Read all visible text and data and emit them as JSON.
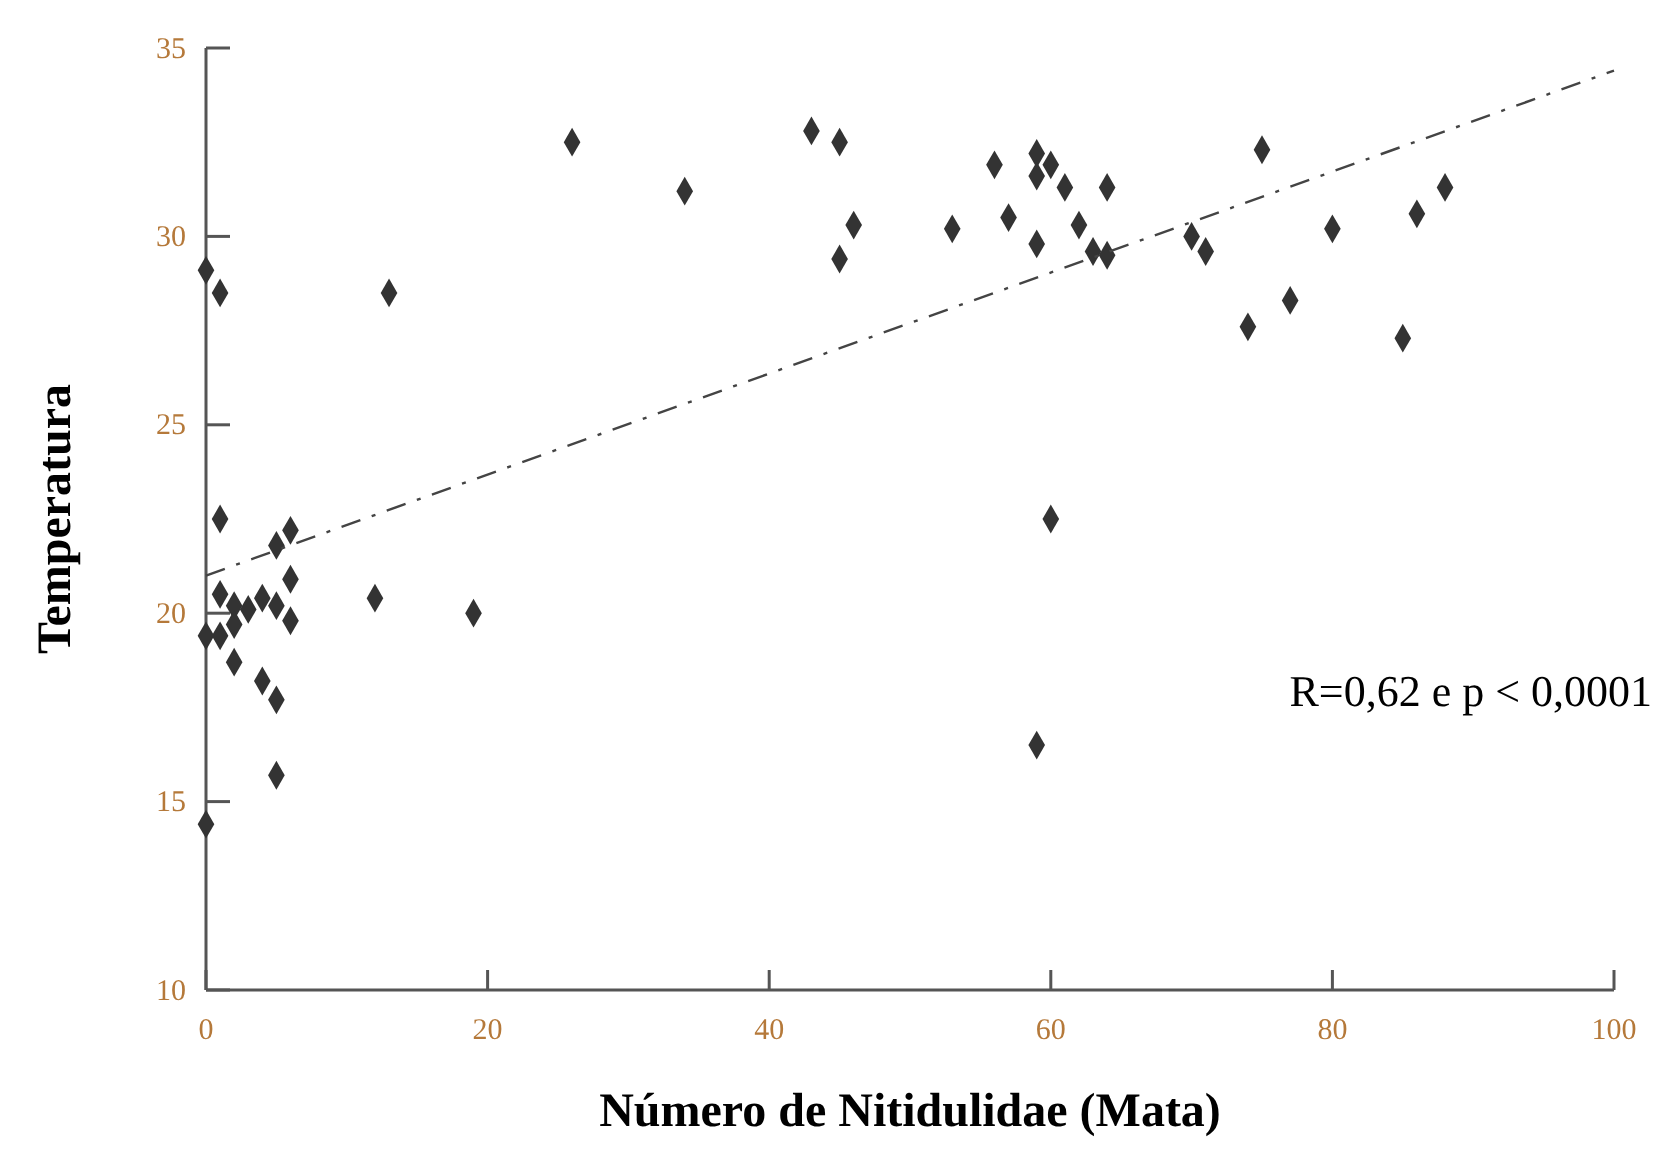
{
  "chart_data": {
    "type": "scatter",
    "xlabel": "Número de Nitidulidae (Mata)",
    "ylabel": "Temperatura",
    "xlim": [
      0,
      100
    ],
    "ylim": [
      10,
      35
    ],
    "xticks": [
      0,
      20,
      40,
      60,
      80,
      100
    ],
    "yticks": [
      10,
      15,
      20,
      25,
      30,
      35
    ],
    "grid": false,
    "marker": "diamond",
    "annotations": [
      "R=0,62 e p < 0,0001"
    ],
    "series": [
      {
        "color": "#333333",
        "x": [
          0,
          1,
          13,
          26,
          34,
          43,
          45,
          46,
          45,
          1,
          6,
          5,
          6,
          1,
          2,
          3,
          4,
          5,
          6,
          2,
          1,
          0,
          12,
          19,
          2,
          4,
          5,
          5,
          0,
          53,
          56,
          59,
          60,
          59,
          61,
          64,
          57,
          62,
          59,
          63,
          64,
          70,
          71,
          75,
          74,
          77,
          80,
          85,
          86,
          88,
          60,
          59
        ],
        "values": [
          29.1,
          28.5,
          28.5,
          32.5,
          31.2,
          32.8,
          32.5,
          30.3,
          29.4,
          22.5,
          22.2,
          21.8,
          20.9,
          20.5,
          20.2,
          20.1,
          20.4,
          20.2,
          19.8,
          19.7,
          19.4,
          19.4,
          20.4,
          20.0,
          18.7,
          18.2,
          17.7,
          15.7,
          14.4,
          30.2,
          31.9,
          32.2,
          31.9,
          31.6,
          31.3,
          31.3,
          30.5,
          30.3,
          29.8,
          29.6,
          29.5,
          30.0,
          29.6,
          32.3,
          27.6,
          28.3,
          30.2,
          27.3,
          30.6,
          31.3,
          22.5,
          16.5
        ]
      },
      {
        "type": "line",
        "color": "#444444",
        "line_style": "dashed",
        "marker": "none",
        "x": [
          0,
          100
        ],
        "values": [
          21.0,
          34.4
        ]
      }
    ]
  }
}
